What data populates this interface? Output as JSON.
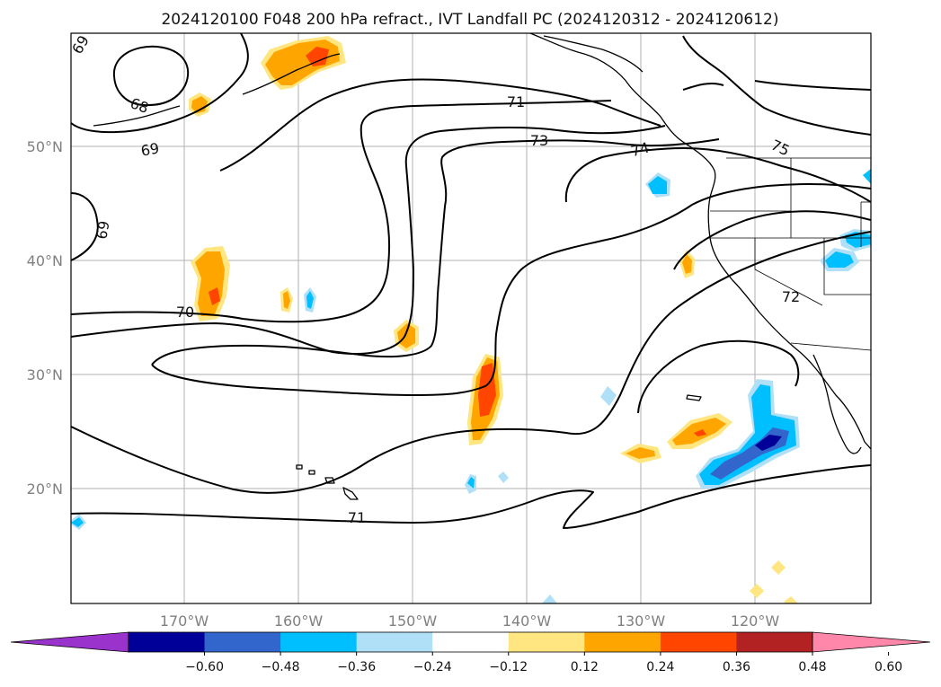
{
  "title": "2024120100 F048 200 hPa refract., IVT Landfall PC (2024120312 - 2024120612)",
  "lat_labels": [
    "50°N",
    "40°N",
    "30°N",
    "20°N"
  ],
  "lon_labels": [
    "170°W",
    "160°W",
    "150°W",
    "140°W",
    "130°W",
    "120°W"
  ],
  "contour_labels": [
    "69",
    "68",
    "69",
    "69",
    "70",
    "71",
    "73",
    "74",
    "75",
    "72",
    "71"
  ],
  "colorbar": {
    "tick_labels": [
      "−0.60",
      "−0.48",
      "−0.36",
      "−0.24",
      "−0.12",
      "0.12",
      "0.24",
      "0.36",
      "0.48",
      "0.60"
    ],
    "colors": [
      "#9933cc",
      "#000099",
      "#3366cc",
      "#00bfff",
      "#b0e0f8",
      "#ffffff",
      "#ffe680",
      "#ffa500",
      "#ff4500",
      "#b22222",
      "#ff88aa"
    ]
  }
}
